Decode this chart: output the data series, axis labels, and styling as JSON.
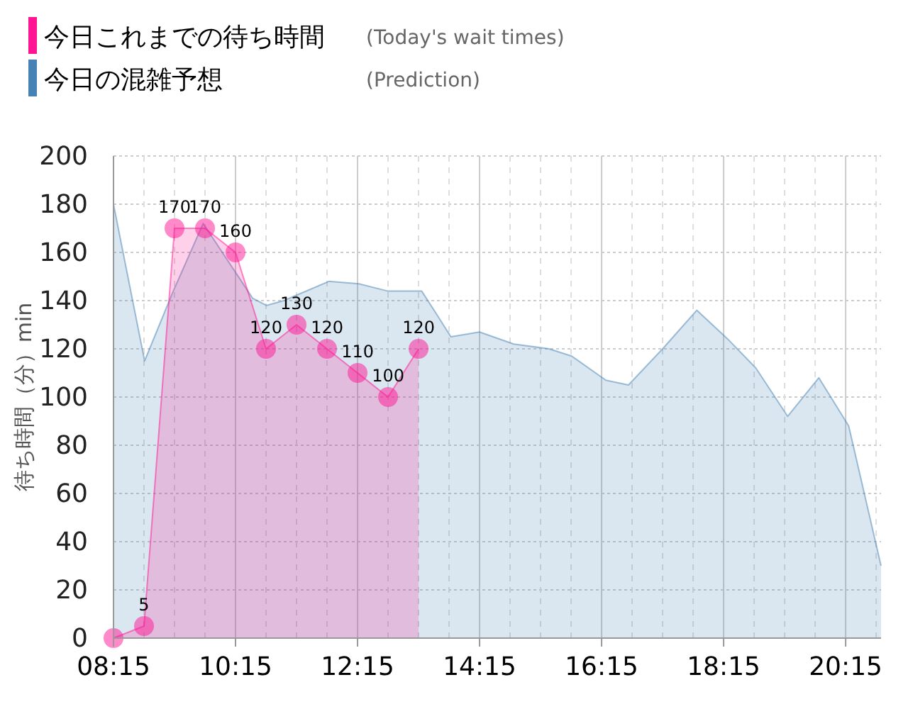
{
  "chart_data": {
    "type": "area",
    "ylabel": "待ち時間（分）min",
    "legend": "top left",
    "grid": true,
    "annotations": [
      "(Today's wait times)",
      "(Prediction)"
    ],
    "xlim": [
      8.25,
      20.83
    ],
    "ylim": [
      0,
      200
    ],
    "yticks": [
      0,
      20,
      40,
      60,
      80,
      100,
      120,
      140,
      160,
      180,
      200
    ],
    "xticks": [
      {
        "value": 8.25,
        "label": "08:15"
      },
      {
        "value": 8.75,
        "label": null
      },
      {
        "value": 9.25,
        "label": null
      },
      {
        "value": 9.75,
        "label": null
      },
      {
        "value": 10.25,
        "label": "10:15"
      },
      {
        "value": 10.75,
        "label": null
      },
      {
        "value": 11.25,
        "label": null
      },
      {
        "value": 11.75,
        "label": null
      },
      {
        "value": 12.25,
        "label": "12:15"
      },
      {
        "value": 12.75,
        "label": null
      },
      {
        "value": 13.25,
        "label": null
      },
      {
        "value": 13.75,
        "label": null
      },
      {
        "value": 14.25,
        "label": "14:15"
      },
      {
        "value": 14.75,
        "label": null
      },
      {
        "value": 15.25,
        "label": null
      },
      {
        "value": 15.75,
        "label": null
      },
      {
        "value": 16.25,
        "label": "16:15"
      },
      {
        "value": 16.75,
        "label": null
      },
      {
        "value": 17.25,
        "label": null
      },
      {
        "value": 17.75,
        "label": null
      },
      {
        "value": 18.25,
        "label": "18:15"
      },
      {
        "value": 18.75,
        "label": null
      },
      {
        "value": 19.25,
        "label": null
      },
      {
        "value": 19.75,
        "label": null
      },
      {
        "value": 20.25,
        "label": "20:15"
      },
      {
        "value": 20.75,
        "label": null
      }
    ],
    "series": [
      {
        "name": "今日の混雑予想",
        "color": "#4682b4",
        "x": [
          8.25,
          8.76,
          9.23,
          9.72,
          10.27,
          10.53,
          10.76,
          11.04,
          11.78,
          12.27,
          12.74,
          13.3,
          13.53,
          13.78,
          14.25,
          14.81,
          15.39,
          15.76,
          16.32,
          16.69,
          17.25,
          17.81,
          18.32,
          18.78,
          19.3,
          19.81,
          20.3,
          20.83
        ],
        "values": [
          180,
          115,
          144,
          172,
          151,
          141,
          138,
          140,
          148,
          147,
          144,
          144,
          135,
          125,
          127,
          122,
          120,
          117,
          107,
          105,
          120,
          136,
          124,
          112,
          92,
          108,
          88,
          30
        ]
      },
      {
        "name": "今日これまでの待ち時間",
        "color": "#ff1493",
        "marker": "circle",
        "value_labels": [
          null,
          "5",
          "170",
          "170",
          "160",
          "120",
          "130",
          "120",
          "110",
          "100",
          "120"
        ],
        "x": [
          8.25,
          8.75,
          9.25,
          9.75,
          10.25,
          10.75,
          11.25,
          11.75,
          12.25,
          12.75,
          13.25
        ],
        "values": [
          0,
          5,
          170,
          170,
          160,
          120,
          130,
          120,
          110,
          100,
          120
        ]
      }
    ]
  }
}
